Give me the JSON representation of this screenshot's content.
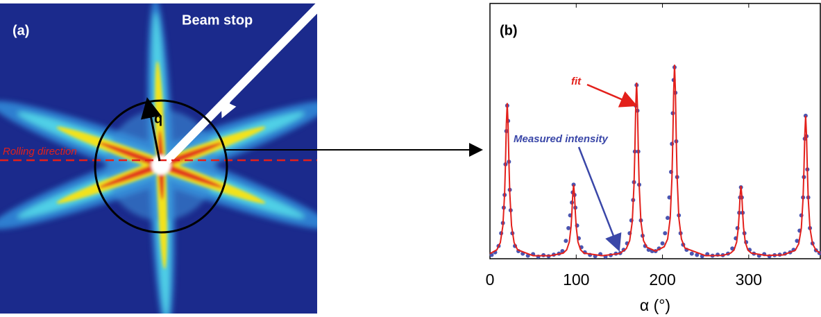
{
  "panel_a": {
    "label": "(a)",
    "beam_stop": "Beam stop",
    "q": "q",
    "rolling": "Rolling direction"
  },
  "chart_data": {
    "type": "line",
    "panel_label": "(b)",
    "xlabel": "α (°)",
    "xlim": [
      0,
      383
    ],
    "ylim": [
      0,
      1
    ],
    "xticks": [
      0,
      100,
      200,
      300
    ],
    "annotations": [
      "fit",
      "Measured intensity"
    ],
    "series": [
      {
        "name": "fit",
        "color": "#e3201b",
        "style": "line",
        "x": [
          0,
          8,
          12,
          15,
          17,
          18,
          19,
          20,
          21,
          22,
          23,
          25,
          28,
          32,
          50,
          70,
          85,
          89,
          92,
          94,
          95,
          96,
          97,
          98,
          99,
          100,
          102,
          105,
          109,
          130,
          150,
          158,
          162,
          165,
          167,
          168,
          169,
          170,
          171,
          172,
          173,
          175,
          178,
          182,
          192,
          202,
          206,
          209,
          211,
          212,
          213,
          214,
          215,
          216,
          217,
          219,
          222,
          226,
          250,
          270,
          279,
          283,
          286,
          288,
          289,
          290,
          291,
          292,
          293,
          294,
          296,
          299,
          303,
          320,
          340,
          354,
          358,
          361,
          363,
          364,
          365,
          366,
          367,
          368,
          369,
          371,
          374,
          378,
          383
        ],
        "values": [
          0.02,
          0.035,
          0.063,
          0.13,
          0.256,
          0.376,
          0.527,
          0.61,
          0.527,
          0.376,
          0.256,
          0.13,
          0.063,
          0.035,
          0.012,
          0.012,
          0.022,
          0.035,
          0.066,
          0.125,
          0.181,
          0.251,
          0.29,
          0.251,
          0.181,
          0.125,
          0.066,
          0.035,
          0.022,
          0.012,
          0.02,
          0.039,
          0.071,
          0.146,
          0.289,
          0.425,
          0.596,
          0.69,
          0.596,
          0.425,
          0.289,
          0.146,
          0.071,
          0.045,
          0.03,
          0.047,
          0.077,
          0.16,
          0.318,
          0.468,
          0.657,
          0.76,
          0.657,
          0.468,
          0.318,
          0.16,
          0.077,
          0.042,
          0.012,
          0.013,
          0.022,
          0.034,
          0.065,
          0.123,
          0.178,
          0.247,
          0.285,
          0.247,
          0.178,
          0.123,
          0.065,
          0.034,
          0.022,
          0.013,
          0.015,
          0.033,
          0.059,
          0.12,
          0.236,
          0.346,
          0.484,
          0.56,
          0.484,
          0.346,
          0.236,
          0.12,
          0.059,
          0.033,
          0.022
        ]
      },
      {
        "name": "Measured intensity",
        "color": "#4b55b0",
        "style": "dots",
        "x": [
          2,
          6,
          10,
          13,
          15,
          16,
          17,
          18,
          19,
          20,
          21,
          22,
          23,
          24,
          26,
          29,
          33,
          38,
          44,
          50,
          56,
          62,
          68,
          74,
          80,
          84,
          88,
          91,
          93,
          95,
          96,
          97,
          98,
          99,
          101,
          103,
          106,
          110,
          116,
          122,
          128,
          134,
          140,
          146,
          151,
          155,
          159,
          162,
          164,
          166,
          167,
          168,
          169,
          170,
          171,
          172,
          173,
          175,
          177,
          180,
          184,
          188,
          192,
          196,
          200,
          203,
          206,
          208,
          210,
          211,
          212,
          213,
          214,
          215,
          216,
          217,
          219,
          221,
          224,
          228,
          234,
          240,
          246,
          252,
          258,
          264,
          270,
          276,
          281,
          285,
          287,
          289,
          290,
          291,
          292,
          293,
          295,
          297,
          301,
          306,
          312,
          318,
          324,
          330,
          336,
          342,
          348,
          352,
          356,
          359,
          361,
          363,
          364,
          365,
          366,
          367,
          368,
          369,
          371,
          374,
          378,
          382
        ],
        "values": [
          0.015,
          0.025,
          0.05,
          0.1,
          0.14,
          0.2,
          0.25,
          0.37,
          0.5,
          0.6,
          0.54,
          0.38,
          0.27,
          0.19,
          0.1,
          0.05,
          0.03,
          0.02,
          0.012,
          0.018,
          0.008,
          0.014,
          0.01,
          0.016,
          0.02,
          0.03,
          0.07,
          0.12,
          0.17,
          0.22,
          0.26,
          0.29,
          0.25,
          0.2,
          0.13,
          0.08,
          0.045,
          0.025,
          0.015,
          0.01,
          0.018,
          0.008,
          0.014,
          0.02,
          0.022,
          0.035,
          0.06,
          0.1,
          0.15,
          0.23,
          0.3,
          0.42,
          0.6,
          0.68,
          0.58,
          0.42,
          0.29,
          0.15,
          0.09,
          0.05,
          0.035,
          0.03,
          0.03,
          0.04,
          0.06,
          0.1,
          0.16,
          0.24,
          0.34,
          0.45,
          0.57,
          0.7,
          0.75,
          0.65,
          0.46,
          0.32,
          0.17,
          0.1,
          0.055,
          0.035,
          0.02,
          0.015,
          0.01,
          0.018,
          0.012,
          0.016,
          0.014,
          0.02,
          0.04,
          0.08,
          0.12,
          0.18,
          0.24,
          0.28,
          0.24,
          0.18,
          0.1,
          0.065,
          0.035,
          0.02,
          0.012,
          0.018,
          0.01,
          0.014,
          0.016,
          0.02,
          0.025,
          0.035,
          0.07,
          0.11,
          0.17,
          0.24,
          0.32,
          0.47,
          0.56,
          0.48,
          0.35,
          0.24,
          0.12,
          0.06,
          0.033,
          0.022
        ]
      }
    ]
  }
}
